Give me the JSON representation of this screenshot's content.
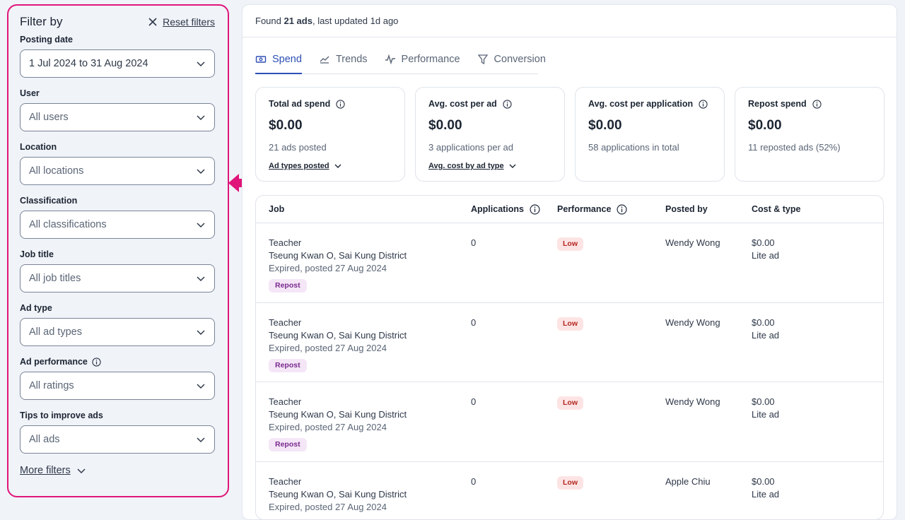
{
  "sidebar": {
    "title": "Filter by",
    "reset_label": "Reset filters",
    "filters": [
      {
        "label": "Posting date",
        "value": "1 Jul 2024 to 31 Aug 2024"
      },
      {
        "label": "User",
        "value": "All users"
      },
      {
        "label": "Location",
        "value": "All locations"
      },
      {
        "label": "Classification",
        "value": "All classifications"
      },
      {
        "label": "Job title",
        "value": "All job titles"
      },
      {
        "label": "Ad type",
        "value": "All ad types"
      },
      {
        "label": "Ad performance",
        "value": "All ratings"
      },
      {
        "label": "Tips to improve ads",
        "value": "All ads"
      }
    ],
    "more_filters": "More filters"
  },
  "header": {
    "found_prefix": "Found ",
    "found_count": "21 ads",
    "found_suffix": ", last updated 1d ago"
  },
  "tabs": [
    {
      "label": "Spend",
      "icon": "money-icon",
      "active": true
    },
    {
      "label": "Trends",
      "icon": "trend-line-icon",
      "active": false
    },
    {
      "label": "Performance",
      "icon": "pulse-icon",
      "active": false
    },
    {
      "label": "Conversion",
      "icon": "funnel-icon",
      "active": false
    }
  ],
  "cards": [
    {
      "title": "Total ad spend",
      "value": "$0.00",
      "sub": "21 ads posted",
      "link": "Ad types posted"
    },
    {
      "title": "Avg. cost per ad",
      "value": "$0.00",
      "sub": "3 applications per ad",
      "link": "Avg. cost by ad type"
    },
    {
      "title": "Avg. cost per application",
      "value": "$0.00",
      "sub": "58 applications in total",
      "link": ""
    },
    {
      "title": "Repost spend",
      "value": "$0.00",
      "sub": "11 reposted ads (52%)",
      "link": ""
    }
  ],
  "table": {
    "columns": [
      "Job",
      "Applications",
      "Performance",
      "Posted by",
      "Cost & type"
    ],
    "rows": [
      {
        "title": "Teacher",
        "location": "Tseung Kwan O, Sai Kung District",
        "status": "Expired, posted 27 Aug 2024",
        "badge": "Repost",
        "applications": "0",
        "performance": "Low",
        "posted_by": "Wendy Wong",
        "cost": "$0.00",
        "type": "Lite ad"
      },
      {
        "title": "Teacher",
        "location": "Tseung Kwan O, Sai Kung District",
        "status": "Expired, posted 27 Aug 2024",
        "badge": "Repost",
        "applications": "0",
        "performance": "Low",
        "posted_by": "Wendy Wong",
        "cost": "$0.00",
        "type": "Lite ad"
      },
      {
        "title": "Teacher",
        "location": "Tseung Kwan O, Sai Kung District",
        "status": "Expired, posted 27 Aug 2024",
        "badge": "Repost",
        "applications": "0",
        "performance": "Low",
        "posted_by": "Wendy Wong",
        "cost": "$0.00",
        "type": "Lite ad"
      },
      {
        "title": "Teacher",
        "location": "Tseung Kwan O, Sai Kung District",
        "status": "Expired, posted 27 Aug 2024",
        "badge": "",
        "applications": "0",
        "performance": "Low",
        "posted_by": "Apple Chiu",
        "cost": "$0.00",
        "type": "Lite ad"
      }
    ]
  },
  "colors": {
    "highlight": "#e0157a",
    "accent": "#2d4fb5",
    "repost_bg": "#f4e6f7",
    "low_bg": "#fde4e4"
  }
}
